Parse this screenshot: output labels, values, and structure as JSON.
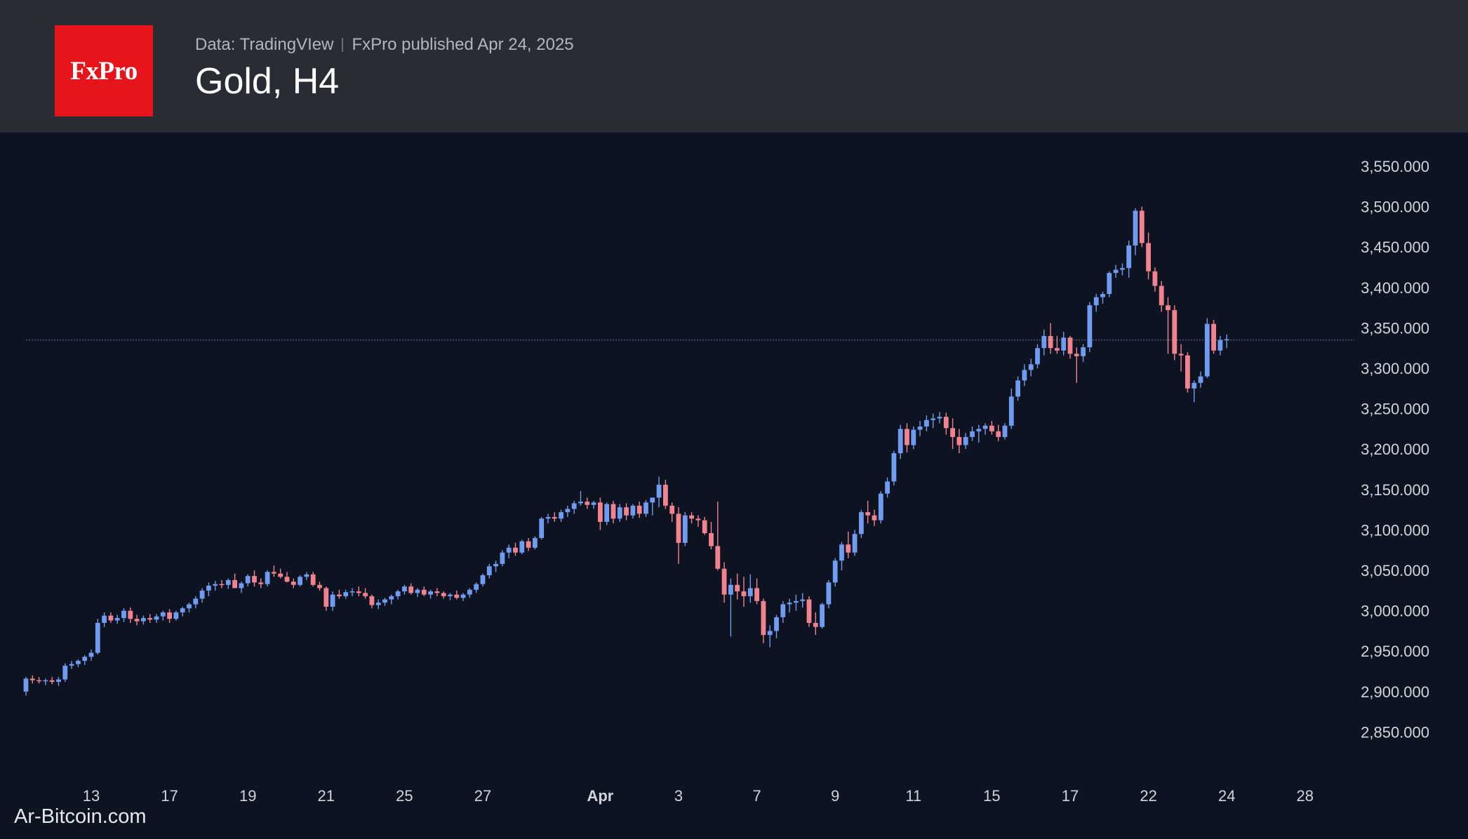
{
  "header": {
    "logo_text": "FxPro",
    "data_source": "Data: TradingVIew",
    "published": "FxPro published Apr 24, 2025",
    "title": "Gold, H4"
  },
  "watermark": "Ar-Bitcoin.com",
  "colors": {
    "header_bg": "#292c35",
    "chart_bg": "#0d1321",
    "logo_bg": "#e8141b",
    "up": "#6f9cf0",
    "down": "#f2838e",
    "price_line": "#5a7bb5"
  },
  "chart_data": {
    "type": "candlestick",
    "symbol": "Gold",
    "timeframe": "H4",
    "ylim": [
      2820,
      3570
    ],
    "yticks": [
      "3,550.000",
      "3,500.000",
      "3,450.000",
      "3,400.000",
      "3,350.000",
      "3,300.000",
      "3,250.000",
      "3,200.000",
      "3,150.000",
      "3,100.000",
      "3,050.000",
      "3,000.000",
      "2,950.000",
      "2,900.000",
      "2,850.000"
    ],
    "ytick_values": [
      3550,
      3500,
      3450,
      3400,
      3350,
      3300,
      3250,
      3200,
      3150,
      3100,
      3050,
      3000,
      2950,
      2900,
      2850
    ],
    "xticks": [
      {
        "label": "13",
        "index": 10,
        "bold": false
      },
      {
        "label": "17",
        "index": 22,
        "bold": false
      },
      {
        "label": "19",
        "index": 34,
        "bold": false
      },
      {
        "label": "21",
        "index": 46,
        "bold": false
      },
      {
        "label": "25",
        "index": 58,
        "bold": false
      },
      {
        "label": "27",
        "index": 70,
        "bold": false
      },
      {
        "label": "Apr",
        "index": 88,
        "bold": true
      },
      {
        "label": "3",
        "index": 100,
        "bold": false
      },
      {
        "label": "7",
        "index": 112,
        "bold": false
      },
      {
        "label": "9",
        "index": 124,
        "bold": false
      },
      {
        "label": "11",
        "index": 136,
        "bold": false
      },
      {
        "label": "15",
        "index": 148,
        "bold": false
      },
      {
        "label": "17",
        "index": 160,
        "bold": false
      },
      {
        "label": "22",
        "index": 172,
        "bold": false
      },
      {
        "label": "24",
        "index": 184,
        "bold": false
      },
      {
        "label": "28",
        "index": 196,
        "bold": false
      }
    ],
    "current_price": 3335,
    "ohlc": [
      [
        2900,
        2918,
        2895,
        2916
      ],
      [
        2916,
        2920,
        2910,
        2914
      ],
      [
        2914,
        2918,
        2910,
        2913
      ],
      [
        2913,
        2916,
        2908,
        2914
      ],
      [
        2914,
        2918,
        2909,
        2912
      ],
      [
        2912,
        2918,
        2907,
        2915
      ],
      [
        2915,
        2935,
        2912,
        2932
      ],
      [
        2932,
        2938,
        2928,
        2934
      ],
      [
        2934,
        2940,
        2930,
        2938
      ],
      [
        2938,
        2945,
        2933,
        2943
      ],
      [
        2943,
        2952,
        2938,
        2948
      ],
      [
        2948,
        2990,
        2946,
        2985
      ],
      [
        2985,
        2998,
        2980,
        2994
      ],
      [
        2994,
        2998,
        2985,
        2988
      ],
      [
        2988,
        2995,
        2984,
        2991
      ],
      [
        2991,
        3003,
        2986,
        3000
      ],
      [
        3000,
        3004,
        2985,
        2990
      ],
      [
        2990,
        2995,
        2982,
        2987
      ],
      [
        2987,
        2994,
        2983,
        2991
      ],
      [
        2991,
        2996,
        2985,
        2989
      ],
      [
        2989,
        2996,
        2985,
        2993
      ],
      [
        2993,
        3000,
        2988,
        2998
      ],
      [
        2998,
        3002,
        2985,
        2990
      ],
      [
        2990,
        3000,
        2988,
        2998
      ],
      [
        2998,
        3005,
        2993,
        3003
      ],
      [
        3003,
        3010,
        2998,
        3008
      ],
      [
        3008,
        3018,
        3003,
        3015
      ],
      [
        3015,
        3028,
        3010,
        3025
      ],
      [
        3025,
        3035,
        3018,
        3031
      ],
      [
        3031,
        3037,
        3025,
        3033
      ],
      [
        3033,
        3038,
        3028,
        3032
      ],
      [
        3032,
        3040,
        3027,
        3038
      ],
      [
        3038,
        3046,
        3030,
        3028
      ],
      [
        3028,
        3036,
        3022,
        3034
      ],
      [
        3034,
        3045,
        3030,
        3043
      ],
      [
        3043,
        3050,
        3030,
        3035
      ],
      [
        3035,
        3040,
        3028,
        3033
      ],
      [
        3033,
        3050,
        3030,
        3048
      ],
      [
        3048,
        3056,
        3042,
        3046
      ],
      [
        3046,
        3052,
        3040,
        3042
      ],
      [
        3042,
        3048,
        3035,
        3036
      ],
      [
        3036,
        3040,
        3028,
        3032
      ],
      [
        3032,
        3044,
        3030,
        3042
      ],
      [
        3042,
        3048,
        3038,
        3045
      ],
      [
        3045,
        3048,
        3030,
        3032
      ],
      [
        3032,
        3036,
        3025,
        3028
      ],
      [
        3028,
        3030,
        3000,
        3005
      ],
      [
        3005,
        3024,
        3000,
        3020
      ],
      [
        3020,
        3026,
        3015,
        3018
      ],
      [
        3018,
        3026,
        3015,
        3023
      ],
      [
        3023,
        3028,
        3018,
        3024
      ],
      [
        3024,
        3030,
        3018,
        3022
      ],
      [
        3022,
        3028,
        3015,
        3018
      ],
      [
        3018,
        3020,
        3003,
        3007
      ],
      [
        3007,
        3014,
        3002,
        3010
      ],
      [
        3010,
        3016,
        3006,
        3014
      ],
      [
        3014,
        3020,
        3008,
        3018
      ],
      [
        3018,
        3026,
        3014,
        3024
      ],
      [
        3024,
        3032,
        3020,
        3030
      ],
      [
        3030,
        3034,
        3020,
        3022
      ],
      [
        3022,
        3028,
        3017,
        3026
      ],
      [
        3026,
        3030,
        3018,
        3020
      ],
      [
        3020,
        3026,
        3015,
        3024
      ],
      [
        3024,
        3028,
        3018,
        3022
      ],
      [
        3022,
        3024,
        3015,
        3018
      ],
      [
        3018,
        3022,
        3013,
        3020
      ],
      [
        3020,
        3025,
        3014,
        3016
      ],
      [
        3016,
        3022,
        3012,
        3020
      ],
      [
        3020,
        3028,
        3016,
        3026
      ],
      [
        3026,
        3035,
        3022,
        3033
      ],
      [
        3033,
        3046,
        3030,
        3044
      ],
      [
        3044,
        3058,
        3040,
        3055
      ],
      [
        3055,
        3062,
        3048,
        3058
      ],
      [
        3058,
        3075,
        3055,
        3072
      ],
      [
        3072,
        3082,
        3065,
        3078
      ],
      [
        3078,
        3084,
        3068,
        3072
      ],
      [
        3072,
        3088,
        3070,
        3086
      ],
      [
        3086,
        3090,
        3074,
        3078
      ],
      [
        3078,
        3092,
        3076,
        3090
      ],
      [
        3090,
        3116,
        3088,
        3114
      ],
      [
        3114,
        3120,
        3108,
        3116
      ],
      [
        3116,
        3122,
        3110,
        3114
      ],
      [
        3114,
        3125,
        3110,
        3122
      ],
      [
        3122,
        3130,
        3116,
        3126
      ],
      [
        3126,
        3136,
        3120,
        3133
      ],
      [
        3133,
        3148,
        3130,
        3135
      ],
      [
        3135,
        3140,
        3126,
        3131
      ],
      [
        3131,
        3136,
        3126,
        3134
      ],
      [
        3134,
        3140,
        3100,
        3110
      ],
      [
        3110,
        3134,
        3106,
        3132
      ],
      [
        3132,
        3136,
        3108,
        3114
      ],
      [
        3114,
        3132,
        3110,
        3128
      ],
      [
        3128,
        3133,
        3112,
        3118
      ],
      [
        3118,
        3132,
        3114,
        3130
      ],
      [
        3130,
        3135,
        3115,
        3120
      ],
      [
        3120,
        3137,
        3116,
        3134
      ],
      [
        3134,
        3140,
        3118,
        3140
      ],
      [
        3140,
        3166,
        3128,
        3156
      ],
      [
        3156,
        3162,
        3126,
        3130
      ],
      [
        3130,
        3134,
        3110,
        3120
      ],
      [
        3120,
        3128,
        3058,
        3084
      ],
      [
        3084,
        3122,
        3080,
        3118
      ],
      [
        3118,
        3122,
        3108,
        3114
      ],
      [
        3114,
        3118,
        3104,
        3112
      ],
      [
        3112,
        3116,
        3094,
        3096
      ],
      [
        3096,
        3110,
        3076,
        3080
      ],
      [
        3080,
        3135,
        3050,
        3052
      ],
      [
        3052,
        3060,
        3010,
        3020
      ],
      [
        3020,
        3040,
        2968,
        3032
      ],
      [
        3032,
        3046,
        3014,
        3024
      ],
      [
        3024,
        3042,
        3005,
        3018
      ],
      [
        3018,
        3045,
        3010,
        3028
      ],
      [
        3028,
        3040,
        3008,
        3012
      ],
      [
        3012,
        3015,
        2960,
        2970
      ],
      [
        2970,
        2982,
        2955,
        2975
      ],
      [
        2975,
        2995,
        2966,
        2992
      ],
      [
        2992,
        3012,
        2985,
        3008
      ],
      [
        3008,
        3015,
        2998,
        3010
      ],
      [
        3010,
        3020,
        3000,
        3012
      ],
      [
        3012,
        3022,
        3004,
        3014
      ],
      [
        3014,
        3018,
        2980,
        2985
      ],
      [
        2985,
        2998,
        2970,
        2980
      ],
      [
        2980,
        3010,
        2978,
        3008
      ],
      [
        3008,
        3038,
        3003,
        3035
      ],
      [
        3035,
        3065,
        3030,
        3062
      ],
      [
        3062,
        3085,
        3050,
        3082
      ],
      [
        3082,
        3098,
        3065,
        3072
      ],
      [
        3072,
        3100,
        3068,
        3095
      ],
      [
        3095,
        3125,
        3090,
        3122
      ],
      [
        3122,
        3136,
        3108,
        3118
      ],
      [
        3118,
        3125,
        3105,
        3112
      ],
      [
        3112,
        3148,
        3108,
        3145
      ],
      [
        3145,
        3165,
        3140,
        3160
      ],
      [
        3160,
        3198,
        3155,
        3195
      ],
      [
        3195,
        3230,
        3188,
        3225
      ],
      [
        3225,
        3232,
        3196,
        3205
      ],
      [
        3205,
        3228,
        3200,
        3224
      ],
      [
        3224,
        3235,
        3216,
        3228
      ],
      [
        3228,
        3242,
        3222,
        3236
      ],
      [
        3236,
        3244,
        3226,
        3238
      ],
      [
        3238,
        3246,
        3232,
        3240
      ],
      [
        3240,
        3245,
        3218,
        3226
      ],
      [
        3226,
        3238,
        3200,
        3215
      ],
      [
        3215,
        3225,
        3195,
        3205
      ],
      [
        3205,
        3220,
        3200,
        3215
      ],
      [
        3215,
        3228,
        3210,
        3222
      ],
      [
        3222,
        3230,
        3208,
        3225
      ],
      [
        3225,
        3232,
        3218,
        3229
      ],
      [
        3229,
        3235,
        3218,
        3222
      ],
      [
        3222,
        3230,
        3210,
        3215
      ],
      [
        3215,
        3232,
        3212,
        3229
      ],
      [
        3229,
        3275,
        3225,
        3265
      ],
      [
        3265,
        3290,
        3260,
        3285
      ],
      [
        3285,
        3305,
        3278,
        3298
      ],
      [
        3298,
        3312,
        3290,
        3305
      ],
      [
        3305,
        3330,
        3300,
        3325
      ],
      [
        3325,
        3348,
        3316,
        3340
      ],
      [
        3340,
        3356,
        3318,
        3325
      ],
      [
        3325,
        3340,
        3318,
        3322
      ],
      [
        3322,
        3345,
        3316,
        3338
      ],
      [
        3338,
        3340,
        3312,
        3318
      ],
      [
        3318,
        3326,
        3282,
        3315
      ],
      [
        3315,
        3330,
        3308,
        3326
      ],
      [
        3326,
        3382,
        3320,
        3378
      ],
      [
        3378,
        3392,
        3370,
        3388
      ],
      [
        3388,
        3395,
        3380,
        3392
      ],
      [
        3392,
        3420,
        3388,
        3418
      ],
      [
        3418,
        3428,
        3412,
        3422
      ],
      [
        3422,
        3430,
        3415,
        3424
      ],
      [
        3424,
        3458,
        3412,
        3452
      ],
      [
        3452,
        3498,
        3440,
        3495
      ],
      [
        3495,
        3500,
        3450,
        3455
      ],
      [
        3455,
        3468,
        3410,
        3420
      ],
      [
        3420,
        3425,
        3395,
        3402
      ],
      [
        3402,
        3408,
        3370,
        3378
      ],
      [
        3378,
        3388,
        3318,
        3372
      ],
      [
        3372,
        3378,
        3310,
        3318
      ],
      [
        3318,
        3330,
        3296,
        3316
      ],
      [
        3316,
        3320,
        3270,
        3275
      ],
      [
        3275,
        3285,
        3258,
        3282
      ],
      [
        3282,
        3296,
        3276,
        3290
      ],
      [
        3290,
        3362,
        3288,
        3355
      ],
      [
        3355,
        3360,
        3318,
        3322
      ],
      [
        3322,
        3340,
        3316,
        3335
      ],
      [
        3335,
        3342,
        3325,
        3336
      ]
    ]
  }
}
